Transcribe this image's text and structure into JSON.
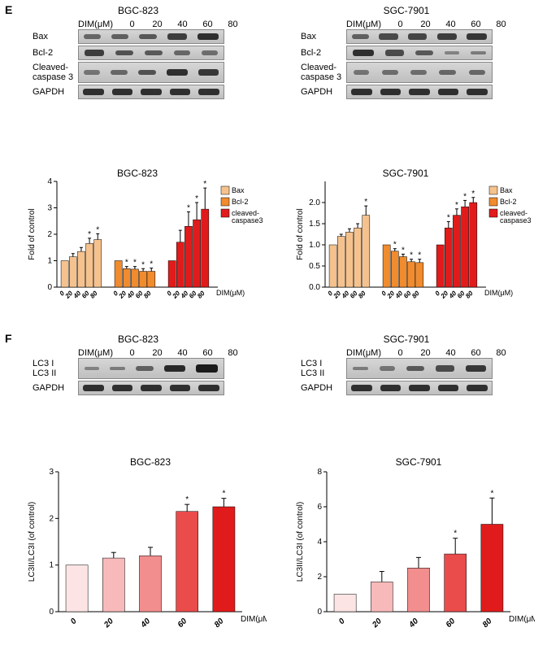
{
  "panels": {
    "E": "E",
    "F": "F"
  },
  "cellLines": {
    "bgc": "BGC-823",
    "sgc": "SGC-7901"
  },
  "dimHeader": {
    "label": "DIM(μM)",
    "concs": [
      "0",
      "20",
      "40",
      "60",
      "80"
    ]
  },
  "blotsE": {
    "labels": [
      "Bax",
      "Bcl-2",
      "Cleaved-\ncaspase 3",
      "GAPDH"
    ],
    "bgc": {
      "Bax": [
        0.4,
        0.45,
        0.5,
        0.7,
        0.8
      ],
      "Bcl2": [
        0.7,
        0.55,
        0.5,
        0.4,
        0.35
      ],
      "Casp3": [
        0.3,
        0.4,
        0.55,
        0.8,
        0.75
      ],
      "GAPDH": [
        0.8,
        0.8,
        0.8,
        0.8,
        0.8
      ]
    },
    "sgc": {
      "Bax": [
        0.45,
        0.6,
        0.65,
        0.7,
        0.75
      ],
      "Bcl2": [
        0.8,
        0.6,
        0.5,
        0.2,
        0.25
      ],
      "Casp3": [
        0.3,
        0.35,
        0.35,
        0.4,
        0.4
      ],
      "GAPDH": [
        0.8,
        0.8,
        0.8,
        0.8,
        0.8
      ]
    }
  },
  "chartE": {
    "ylabel": "Fold of control",
    "xlabel": "DIM(μM)",
    "legend": [
      "Bax",
      "Bcl-2",
      "cleaved-\ncaspase3"
    ],
    "colors": {
      "bax": "#f5c28e",
      "bcl2": "#f08b2e",
      "casp3": "#e11b1b"
    },
    "bgc": {
      "ylim": [
        0,
        4
      ],
      "yticks": [
        0,
        1,
        2,
        3,
        4
      ],
      "bax": {
        "v": [
          1.0,
          1.15,
          1.35,
          1.65,
          1.8
        ],
        "e": [
          0,
          0.12,
          0.15,
          0.2,
          0.22
        ],
        "sig": [
          0,
          0,
          0,
          1,
          1
        ]
      },
      "bcl2": {
        "v": [
          1.0,
          0.7,
          0.68,
          0.6,
          0.6
        ],
        "e": [
          0,
          0.08,
          0.1,
          0.1,
          0.12
        ],
        "sig": [
          0,
          1,
          1,
          1,
          1
        ]
      },
      "casp3": {
        "v": [
          1.0,
          1.7,
          2.3,
          2.55,
          2.95
        ],
        "e": [
          0,
          0.45,
          0.55,
          0.65,
          0.8
        ],
        "sig": [
          0,
          0,
          1,
          1,
          1
        ]
      }
    },
    "sgc": {
      "ylim": [
        0,
        2.5
      ],
      "yticks": [
        "0.0",
        "0.5",
        "1.0",
        "1.5",
        "2.0"
      ],
      "bax": {
        "v": [
          1.0,
          1.2,
          1.3,
          1.4,
          1.7
        ],
        "e": [
          0,
          0.05,
          0.08,
          0.1,
          0.22
        ],
        "sig": [
          0,
          0,
          0,
          0,
          1
        ]
      },
      "bcl2": {
        "v": [
          1.0,
          0.85,
          0.72,
          0.6,
          0.58
        ],
        "e": [
          0,
          0.06,
          0.06,
          0.06,
          0.08
        ],
        "sig": [
          0,
          1,
          1,
          1,
          1
        ]
      },
      "casp3": {
        "v": [
          1.0,
          1.4,
          1.7,
          1.9,
          2.0
        ],
        "e": [
          0,
          0.15,
          0.15,
          0.15,
          0.12
        ],
        "sig": [
          0,
          1,
          1,
          1,
          1
        ]
      }
    }
  },
  "blotsF": {
    "labels": [
      "LC3 I\nLC3 II",
      "GAPDH"
    ],
    "bgc": {
      "LC3": [
        0.2,
        0.25,
        0.45,
        0.85,
        0.95
      ],
      "GAPDH": [
        0.8,
        0.8,
        0.8,
        0.8,
        0.8
      ]
    },
    "sgc": {
      "LC3": [
        0.25,
        0.3,
        0.5,
        0.6,
        0.75
      ],
      "GAPDH": [
        0.8,
        0.8,
        0.8,
        0.8,
        0.8
      ]
    }
  },
  "chartF": {
    "ylabel": "LC3II/LC3I (of control)",
    "xlabel": "DIM(μM)",
    "colors": [
      "#fde4e4",
      "#f7b9b9",
      "#f28e8e",
      "#ea4b4b",
      "#e11b1b"
    ],
    "bgc": {
      "ylim": [
        0,
        3
      ],
      "yticks": [
        0,
        1,
        2,
        3
      ],
      "v": [
        1.0,
        1.15,
        1.2,
        2.15,
        2.25
      ],
      "e": [
        0,
        0.12,
        0.18,
        0.15,
        0.18
      ],
      "sig": [
        0,
        0,
        0,
        1,
        1
      ]
    },
    "sgc": {
      "ylim": [
        0,
        8
      ],
      "yticks": [
        0,
        2,
        4,
        6,
        8
      ],
      "v": [
        1.0,
        1.7,
        2.5,
        3.3,
        5.0
      ],
      "e": [
        0,
        0.6,
        0.6,
        0.9,
        1.5
      ],
      "sig": [
        0,
        0,
        0,
        1,
        1
      ]
    }
  },
  "fonts": {
    "axis": 10,
    "label": 11,
    "title": 12
  }
}
